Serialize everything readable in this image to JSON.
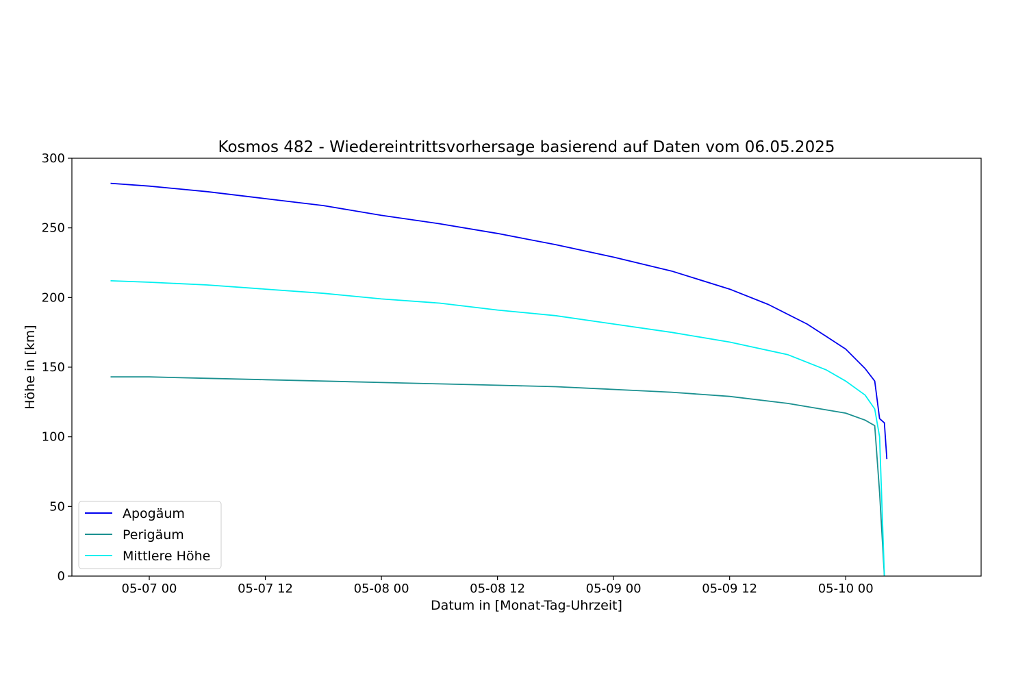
{
  "chart_data": {
    "type": "line",
    "title": "Kosmos 482 - Wiedereintrittsvorhersage basierend auf Daten vom 06.05.2025",
    "xlabel": "Datum in [Monat-Tag-Uhrzeit]",
    "ylabel": "Höhe in [km]",
    "x_unit": "hours",
    "xlim": [
      "2025-05-06 16:00",
      "2025-05-10 14:00"
    ],
    "ylim": [
      0,
      300
    ],
    "x_ticks": [
      {
        "t": "2025-05-07 00:00",
        "label": "05-07 00"
      },
      {
        "t": "2025-05-07 12:00",
        "label": "05-07 12"
      },
      {
        "t": "2025-05-08 00:00",
        "label": "05-08 00"
      },
      {
        "t": "2025-05-08 12:00",
        "label": "05-08 12"
      },
      {
        "t": "2025-05-09 00:00",
        "label": "05-09 00"
      },
      {
        "t": "2025-05-09 12:00",
        "label": "05-09 12"
      },
      {
        "t": "2025-05-10 00:00",
        "label": "05-10 00"
      }
    ],
    "y_ticks": [
      0,
      50,
      100,
      150,
      200,
      250,
      300
    ],
    "grid": false,
    "legend_position": "lower-left",
    "series": [
      {
        "name": "Apogäum",
        "color": "#0000ee",
        "points": [
          [
            "2025-05-06 20:00",
            282
          ],
          [
            "2025-05-07 00:00",
            280
          ],
          [
            "2025-05-07 06:00",
            276
          ],
          [
            "2025-05-07 12:00",
            271
          ],
          [
            "2025-05-07 18:00",
            266
          ],
          [
            "2025-05-08 00:00",
            259
          ],
          [
            "2025-05-08 06:00",
            253
          ],
          [
            "2025-05-08 12:00",
            246
          ],
          [
            "2025-05-08 18:00",
            238
          ],
          [
            "2025-05-09 00:00",
            229
          ],
          [
            "2025-05-09 06:00",
            219
          ],
          [
            "2025-05-09 12:00",
            206
          ],
          [
            "2025-05-09 16:00",
            195
          ],
          [
            "2025-05-09 20:00",
            181
          ],
          [
            "2025-05-09 22:00",
            172
          ],
          [
            "2025-05-10 00:00",
            163
          ],
          [
            "2025-05-10 02:00",
            149
          ],
          [
            "2025-05-10 03:00",
            140
          ],
          [
            "2025-05-10 03:30",
            113
          ],
          [
            "2025-05-10 04:00",
            110
          ],
          [
            "2025-05-10 04:15",
            84
          ]
        ]
      },
      {
        "name": "Perigäum",
        "color": "#1a9090",
        "points": [
          [
            "2025-05-06 20:00",
            143
          ],
          [
            "2025-05-07 00:00",
            143
          ],
          [
            "2025-05-07 06:00",
            142
          ],
          [
            "2025-05-07 12:00",
            141
          ],
          [
            "2025-05-07 18:00",
            140
          ],
          [
            "2025-05-08 00:00",
            139
          ],
          [
            "2025-05-08 06:00",
            138
          ],
          [
            "2025-05-08 12:00",
            137
          ],
          [
            "2025-05-08 18:00",
            136
          ],
          [
            "2025-05-09 00:00",
            134
          ],
          [
            "2025-05-09 06:00",
            132
          ],
          [
            "2025-05-09 12:00",
            129
          ],
          [
            "2025-05-09 18:00",
            124
          ],
          [
            "2025-05-10 00:00",
            117
          ],
          [
            "2025-05-10 02:00",
            112
          ],
          [
            "2025-05-10 03:00",
            108
          ],
          [
            "2025-05-10 03:30",
            60
          ],
          [
            "2025-05-10 04:00",
            0
          ]
        ]
      },
      {
        "name": "Mittlere Höhe",
        "color": "#00f0f0",
        "points": [
          [
            "2025-05-06 20:00",
            212
          ],
          [
            "2025-05-07 00:00",
            211
          ],
          [
            "2025-05-07 06:00",
            209
          ],
          [
            "2025-05-07 12:00",
            206
          ],
          [
            "2025-05-07 18:00",
            203
          ],
          [
            "2025-05-08 00:00",
            199
          ],
          [
            "2025-05-08 06:00",
            196
          ],
          [
            "2025-05-08 12:00",
            191
          ],
          [
            "2025-05-08 18:00",
            187
          ],
          [
            "2025-05-09 00:00",
            181
          ],
          [
            "2025-05-09 06:00",
            175
          ],
          [
            "2025-05-09 12:00",
            168
          ],
          [
            "2025-05-09 18:00",
            159
          ],
          [
            "2025-05-09 22:00",
            148
          ],
          [
            "2025-05-10 00:00",
            140
          ],
          [
            "2025-05-10 02:00",
            130
          ],
          [
            "2025-05-10 03:00",
            120
          ],
          [
            "2025-05-10 03:30",
            100
          ],
          [
            "2025-05-10 04:00",
            0
          ]
        ]
      }
    ]
  }
}
